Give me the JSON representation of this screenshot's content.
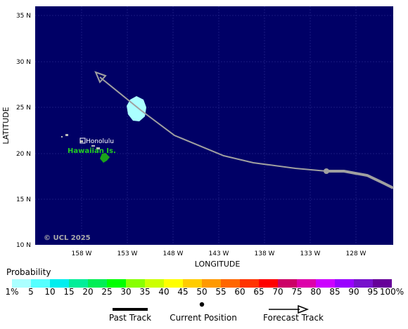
{
  "map": {
    "lat_ticks": [
      "35 N",
      "30 N",
      "25 N",
      "20 N",
      "15 N",
      "10 N"
    ],
    "lon_ticks": [
      "158 W",
      "153 W",
      "148 W",
      "143 W",
      "138 W",
      "133 W",
      "128 W"
    ],
    "x_axis_title": "LONGITUDE",
    "y_axis_title": "LATITUDE",
    "labels": {
      "city": "Honolulu",
      "islands": "Hawaiian Is.",
      "copyright": "© UCL 2025"
    },
    "colors": {
      "ocean": "#000066",
      "land": "#1aa31a",
      "track": "#a0a0a0",
      "probability_blob": "#aaffff",
      "island_label": "#22cc22"
    }
  },
  "legend": {
    "probability_title": "Probability",
    "scale_labels": [
      "1%",
      "5",
      "10",
      "15",
      "20",
      "25",
      "30",
      "35",
      "40",
      "45",
      "50",
      "55",
      "60",
      "65",
      "70",
      "75",
      "80",
      "85",
      "90",
      "95",
      "100%"
    ],
    "scale_colors": [
      "#aaffff",
      "#55ffff",
      "#00eeee",
      "#00ee99",
      "#00ee55",
      "#00ff00",
      "#88ff00",
      "#ccff00",
      "#ffff00",
      "#ffcc00",
      "#ff9900",
      "#ff6600",
      "#ff3300",
      "#ff0000",
      "#cc0066",
      "#dd00aa",
      "#cc00ff",
      "#9900ff",
      "#7711cc",
      "#660099"
    ],
    "past_track": "Past Track",
    "current_position": "Current Position",
    "forecast_track": "Forecast Track"
  }
}
